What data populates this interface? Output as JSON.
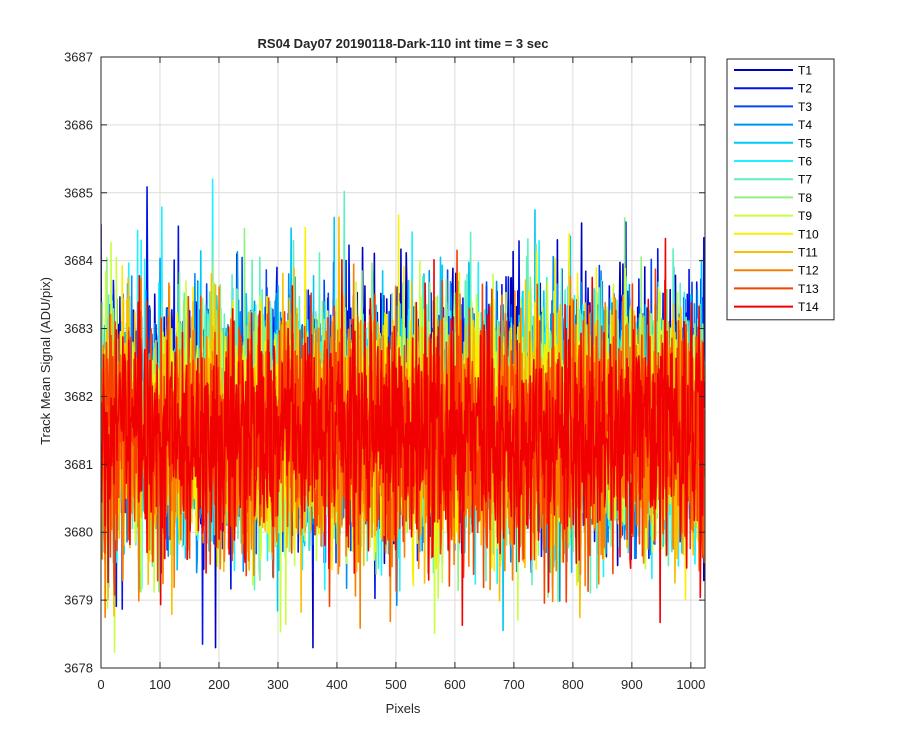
{
  "chart_data": {
    "type": "line",
    "title": "RS04 Day07 20190118-Dark-110 int time = 3 sec",
    "xlabel": "Pixels",
    "ylabel": "Track Mean Signal (ADU/pix)",
    "xlim": [
      0,
      1024
    ],
    "ylim": [
      3678,
      3687
    ],
    "xticks": [
      0,
      100,
      200,
      300,
      400,
      500,
      600,
      700,
      800,
      900,
      1000
    ],
    "yticks": [
      3678,
      3679,
      3680,
      3681,
      3682,
      3683,
      3684,
      3685,
      3686,
      3687
    ],
    "grid": true,
    "legend_position": "outside-top-right",
    "x_points": 1024,
    "series": [
      {
        "name": "T1",
        "color": "#0000c0",
        "mean": 3681.9,
        "spread": 0.95
      },
      {
        "name": "T2",
        "color": "#0014e6",
        "mean": 3681.8,
        "spread": 0.95
      },
      {
        "name": "T3",
        "color": "#0048f0",
        "mean": 3681.7,
        "spread": 0.9
      },
      {
        "name": "T4",
        "color": "#0090f0",
        "mean": 3681.7,
        "spread": 0.9
      },
      {
        "name": "T5",
        "color": "#00c8f8",
        "mean": 3681.6,
        "spread": 0.9
      },
      {
        "name": "T6",
        "color": "#20f0ff",
        "mean": 3681.6,
        "spread": 0.9
      },
      {
        "name": "T7",
        "color": "#60f0c0",
        "mean": 3681.6,
        "spread": 0.9
      },
      {
        "name": "T8",
        "color": "#90f080",
        "mean": 3681.6,
        "spread": 0.9
      },
      {
        "name": "T9",
        "color": "#c8ff40",
        "mean": 3681.6,
        "spread": 0.9
      },
      {
        "name": "T10",
        "color": "#f8f000",
        "mean": 3681.5,
        "spread": 0.9
      },
      {
        "name": "T11",
        "color": "#f8c000",
        "mean": 3681.5,
        "spread": 0.9
      },
      {
        "name": "T12",
        "color": "#f88000",
        "mean": 3681.4,
        "spread": 0.9
      },
      {
        "name": "T13",
        "color": "#f84000",
        "mean": 3681.4,
        "spread": 0.9
      },
      {
        "name": "T14",
        "color": "#f00000",
        "mean": 3681.4,
        "spread": 0.85
      }
    ]
  }
}
